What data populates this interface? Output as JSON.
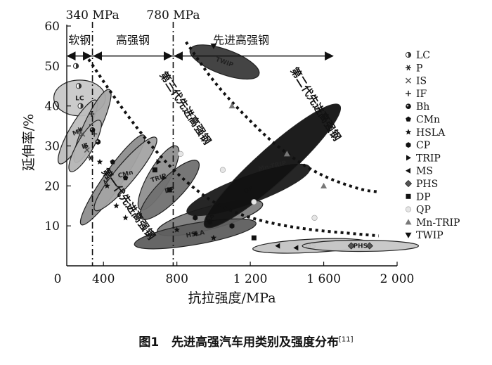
{
  "chart_data": {
    "type": "scatter",
    "xlabel": "抗拉强度/MPa",
    "ylabel": "延伸率/%",
    "xlim": [
      200,
      2000
    ],
    "ylim": [
      0,
      60
    ],
    "x_ticks": [
      {
        "v": 400,
        "label": "400"
      },
      {
        "v": 800,
        "label": "800"
      },
      {
        "v": 1200,
        "label": "1 200"
      },
      {
        "v": 1600,
        "label": "1 600"
      },
      {
        "v": 2000,
        "label": "2 000"
      }
    ],
    "x_origin_label": "0",
    "y_ticks": [
      10,
      20,
      30,
      40,
      50,
      60
    ],
    "boundaries": [
      {
        "x": 340,
        "label": "340 MPa"
      },
      {
        "x": 780,
        "label": "780 MPa"
      }
    ],
    "zones": [
      {
        "label": "软钢",
        "x": 270
      },
      {
        "label": "高强钢",
        "x": 560
      },
      {
        "label": "先进高强钢",
        "x": 1150
      }
    ],
    "arrow_y": 52.5,
    "generations": [
      {
        "label": "第一代先进高强钢",
        "x": 520,
        "y": 15,
        "rotate": 55
      },
      {
        "label": "第三代先进高强钢",
        "x": 830,
        "y": 39,
        "rotate": 57
      },
      {
        "label": "第二代先进高强钢",
        "x": 1540,
        "y": 40,
        "rotate": 58
      }
    ],
    "curves": [
      {
        "points": [
          [
            300,
            53
          ],
          [
            460,
            42
          ],
          [
            640,
            31
          ],
          [
            820,
            22
          ],
          [
            1050,
            14
          ],
          [
            1400,
            9.5
          ],
          [
            1900,
            7.5
          ]
        ]
      },
      {
        "points": [
          [
            850,
            56
          ],
          [
            1000,
            46
          ],
          [
            1160,
            38
          ],
          [
            1340,
            30
          ],
          [
            1560,
            23
          ],
          [
            1800,
            19
          ],
          [
            1900,
            18.5
          ]
        ]
      }
    ],
    "ellipses": [
      {
        "label": "LC",
        "cx": 270,
        "cy": 42,
        "rx": 6,
        "ry": 7.5,
        "rot": 0,
        "fill": "#c8c8c8"
      },
      {
        "label": "MS",
        "cx": 260,
        "cy": 33.5,
        "rx": 9,
        "ry": 3.2,
        "rot": -60,
        "fill": "#bdbdbd"
      },
      {
        "label": "IF",
        "cx": 340,
        "cy": 35,
        "rx": 10,
        "ry": 3.2,
        "rot": -65,
        "fill": "#a8a8a8"
      },
      {
        "label": "IS",
        "cx": 300,
        "cy": 30,
        "rx": 7,
        "ry": 3,
        "rot": -60,
        "fill": "#b4b4b4"
      },
      {
        "label": "HSLA",
        "cx": 450,
        "cy": 21.5,
        "rx": 14,
        "ry": 3.6,
        "rot": -55,
        "fill": "#8e8e8e"
      },
      {
        "label": "CMn",
        "cx": 520,
        "cy": 23,
        "rx": 12,
        "ry": 3.8,
        "rot": -50,
        "fill": "#a3a3a3"
      },
      {
        "label": "TRIP",
        "cx": 700,
        "cy": 22,
        "rx": 9,
        "ry": 4.2,
        "rot": -60,
        "fill": "#8f8f8f"
      },
      {
        "label": "DP",
        "cx": 760,
        "cy": 19,
        "rx": 10,
        "ry": 4.8,
        "rot": -45,
        "fill": "#707070"
      },
      {
        "label": "CP",
        "cx": 980,
        "cy": 12,
        "rx": 14,
        "ry": 4.5,
        "rot": -15,
        "fill": "#7d7d7d"
      },
      {
        "label": "HSLA",
        "cx": 900,
        "cy": 8,
        "rx": 16,
        "ry": 4.2,
        "rot": -10,
        "fill": "#5e5e5e"
      },
      {
        "label": "QP",
        "cx": 1190,
        "cy": 19,
        "rx": 17,
        "ry": 5.5,
        "rot": -20,
        "fill": "#1a1a1a"
      },
      {
        "label": "Mn-TRIP",
        "cx": 1320,
        "cy": 25,
        "rx": 24,
        "ry": 7,
        "rot": -42,
        "fill": "#111111"
      },
      {
        "label": "TWIP",
        "cx": 1060,
        "cy": 51,
        "rx": 9,
        "ry": 5,
        "rot": 20,
        "fill": "#3a3a3a"
      },
      {
        "label": "MS",
        "cx": 1530,
        "cy": 5,
        "rx": 15,
        "ry": 2.4,
        "rot": -3,
        "fill": "#c4c4c4"
      },
      {
        "label": "PHS",
        "cx": 1800,
        "cy": 5,
        "rx": 15,
        "ry": 1.9,
        "rot": 0,
        "fill": "#c6c6c6"
      }
    ],
    "points": [
      {
        "s": "LC",
        "x": 250,
        "y": 50
      },
      {
        "s": "LC",
        "x": 265,
        "y": 45
      },
      {
        "s": "LC",
        "x": 275,
        "y": 40
      },
      {
        "s": "P",
        "x": 270,
        "y": 34
      },
      {
        "s": "P",
        "x": 300,
        "y": 30
      },
      {
        "s": "P",
        "x": 330,
        "y": 27
      },
      {
        "s": "IS",
        "x": 285,
        "y": 33
      },
      {
        "s": "IS",
        "x": 310,
        "y": 29
      },
      {
        "s": "IF",
        "x": 335,
        "y": 38
      },
      {
        "s": "IF",
        "x": 350,
        "y": 33
      },
      {
        "s": "Bh",
        "x": 340,
        "y": 34
      },
      {
        "s": "Bh",
        "x": 370,
        "y": 31
      },
      {
        "s": "CMn",
        "x": 450,
        "y": 26
      },
      {
        "s": "CMn",
        "x": 520,
        "y": 22
      },
      {
        "s": "HSLA",
        "x": 380,
        "y": 26
      },
      {
        "s": "HSLA",
        "x": 420,
        "y": 20
      },
      {
        "s": "HSLA",
        "x": 470,
        "y": 15
      },
      {
        "s": "HSLA",
        "x": 520,
        "y": 12
      },
      {
        "s": "HSLA",
        "x": 800,
        "y": 9
      },
      {
        "s": "HSLA",
        "x": 900,
        "y": 8
      },
      {
        "s": "HSLA",
        "x": 1000,
        "y": 7
      },
      {
        "s": "CP",
        "x": 900,
        "y": 12
      },
      {
        "s": "CP",
        "x": 980,
        "y": 11
      },
      {
        "s": "CP",
        "x": 1100,
        "y": 10
      },
      {
        "s": "TRIP",
        "x": 700,
        "y": 26
      },
      {
        "s": "TRIP",
        "x": 730,
        "y": 22
      },
      {
        "s": "MS",
        "x": 1350,
        "y": 5
      },
      {
        "s": "MS",
        "x": 1450,
        "y": 4.5
      },
      {
        "s": "PHS",
        "x": 1750,
        "y": 5
      },
      {
        "s": "PHS",
        "x": 1850,
        "y": 5
      },
      {
        "s": "DP",
        "x": 680,
        "y": 24
      },
      {
        "s": "DP",
        "x": 760,
        "y": 19
      },
      {
        "s": "DP",
        "x": 1220,
        "y": 7
      },
      {
        "s": "QP",
        "x": 820,
        "y": 28
      },
      {
        "s": "QP",
        "x": 1050,
        "y": 24
      },
      {
        "s": "QP",
        "x": 1220,
        "y": 16
      },
      {
        "s": "QP",
        "x": 1550,
        "y": 12
      },
      {
        "s": "Mn-TRIP",
        "x": 1100,
        "y": 40
      },
      {
        "s": "Mn-TRIP",
        "x": 1400,
        "y": 28
      },
      {
        "s": "Mn-TRIP",
        "x": 1600,
        "y": 20
      },
      {
        "s": "TWIP",
        "x": 1000,
        "y": 55
      }
    ],
    "legend": [
      {
        "key": "LC",
        "label": "LC"
      },
      {
        "key": "P",
        "label": "P"
      },
      {
        "key": "IS",
        "label": "IS"
      },
      {
        "key": "IF",
        "label": "IF"
      },
      {
        "key": "Bh",
        "label": "Bh"
      },
      {
        "key": "CMn",
        "label": "CMn"
      },
      {
        "key": "HSLA",
        "label": "HSLA"
      },
      {
        "key": "CP",
        "label": "CP"
      },
      {
        "key": "TRIP",
        "label": "TRIP"
      },
      {
        "key": "MS",
        "label": "MS"
      },
      {
        "key": "PHS",
        "label": "PHS"
      },
      {
        "key": "DP",
        "label": "DP"
      },
      {
        "key": "QP",
        "label": "QP"
      },
      {
        "key": "Mn-TRIP",
        "label": "Mn-TRIP"
      },
      {
        "key": "TWIP",
        "label": "TWIP"
      }
    ]
  },
  "caption": {
    "label": "图1",
    "text": "先进高强汽车用类别及强度分布",
    "ref": "[11]"
  }
}
